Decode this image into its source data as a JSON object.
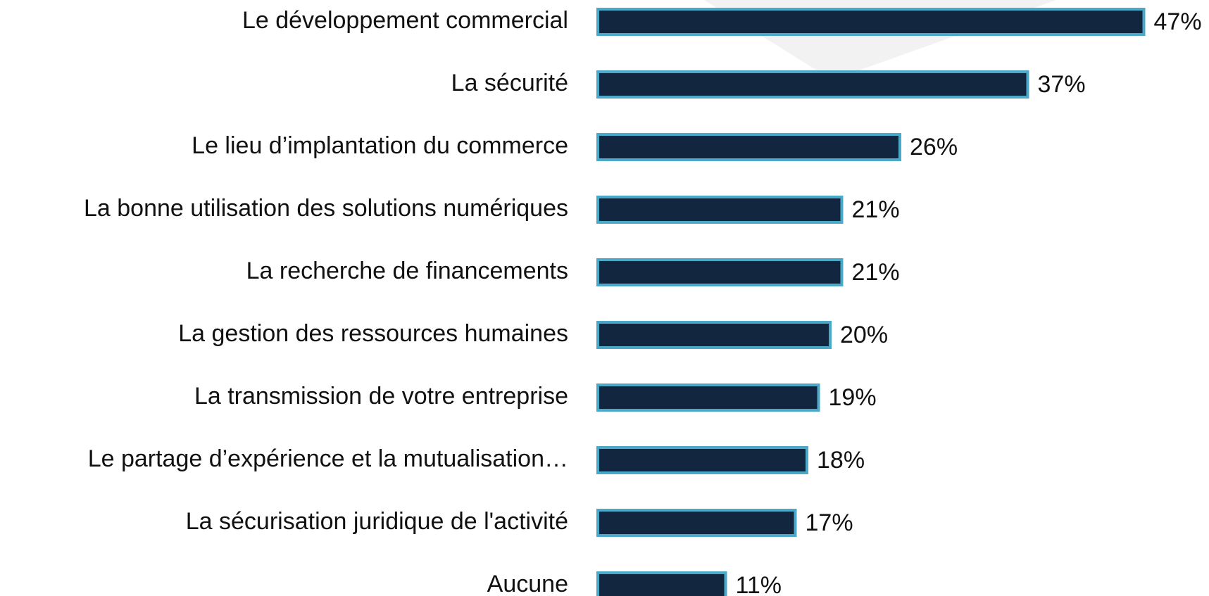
{
  "chart_data": {
    "type": "bar",
    "orientation": "horizontal",
    "categories": [
      "Le développement commercial",
      "La sécurité",
      "Le lieu d’implantation du commerce",
      "La bonne utilisation des solutions numériques",
      "La recherche de financements",
      "La gestion des ressources humaines",
      "La transmission de votre entreprise",
      "Le partage d’expérience et la mutualisation…",
      "La sécurisation juridique de l'activité",
      "Aucune"
    ],
    "values": [
      47,
      37,
      26,
      21,
      21,
      20,
      19,
      18,
      17,
      11
    ],
    "value_labels": [
      "47%",
      "37%",
      "26%",
      "21%",
      "21%",
      "20%",
      "19%",
      "18%",
      "17%",
      "11%"
    ],
    "color": "#12263f",
    "edge_color": "#4aa8c8"
  }
}
